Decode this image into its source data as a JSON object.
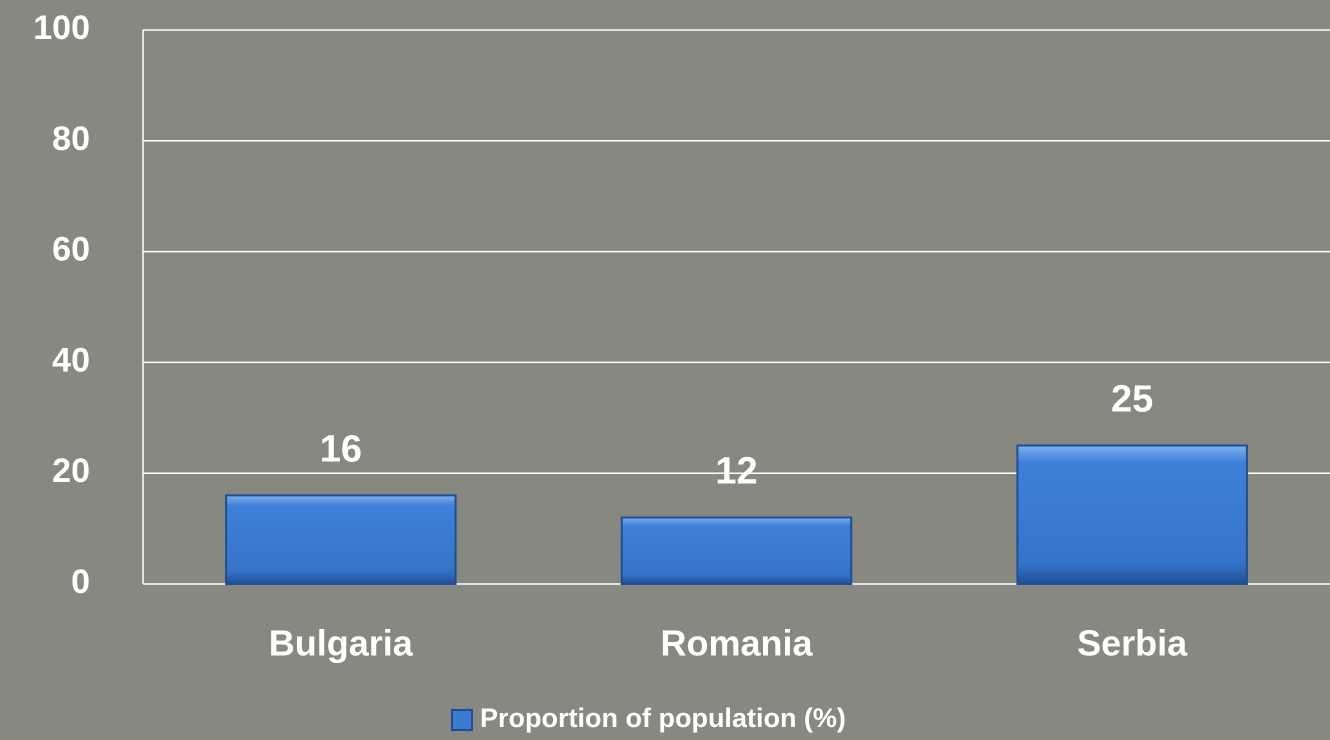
{
  "chart_data": {
    "type": "bar",
    "categories": [
      "Bulgaria",
      "Romania",
      "Serbia"
    ],
    "series": [
      {
        "name": "Proportion of population (%)",
        "color": "#3b7bd4",
        "values": [
          16,
          12,
          25
        ]
      }
    ],
    "ylim": [
      0,
      100
    ],
    "yticks": [
      0,
      20,
      40,
      60,
      80,
      100
    ],
    "grid": true,
    "legend": "bottom"
  }
}
